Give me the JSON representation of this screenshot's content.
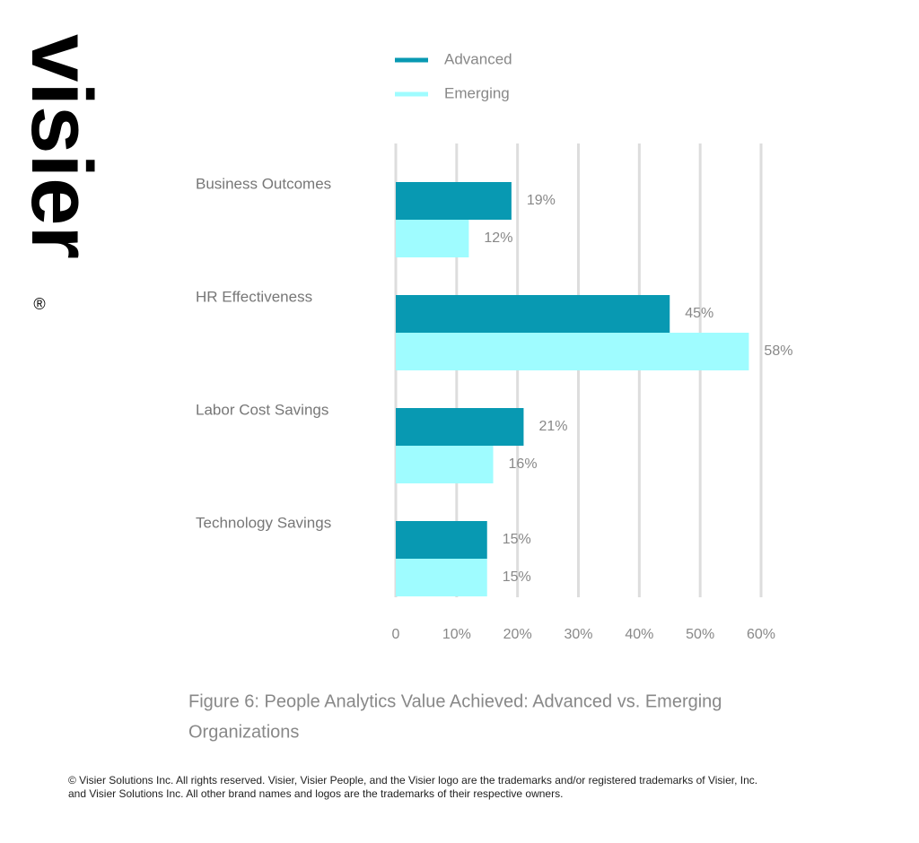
{
  "logo": "visier",
  "logo_mark": "®",
  "chart_data": {
    "type": "bar",
    "orientation": "horizontal",
    "categories": [
      "Business Outcomes",
      "HR Effectiveness",
      "Labor Cost Savings",
      "Technology Savings"
    ],
    "series": [
      {
        "name": "Advanced",
        "color": "#0899b2",
        "values": [
          19,
          45,
          21,
          15
        ],
        "value_labels": [
          "19%",
          "45%",
          "21%",
          "15%"
        ]
      },
      {
        "name": "Emerging",
        "color": "#9ffcff",
        "values": [
          12,
          58,
          16,
          15
        ],
        "value_labels": [
          "12%",
          "58%",
          "16%",
          "15%"
        ]
      }
    ],
    "xlim": [
      0,
      60
    ],
    "xticks": [
      0,
      {
        "value": 10,
        "label": "10%"
      },
      {
        "value": 20,
        "label": "20%"
      },
      {
        "value": 30,
        "label": "30%"
      },
      {
        "value": 40,
        "label": "40%"
      },
      {
        "value": 50,
        "label": "50%"
      },
      {
        "value": 60,
        "label": "60%"
      }
    ],
    "grid": true,
    "legend": "top",
    "caption_lines": [
      "Figure 6: People Analytics Value Achieved: Advanced vs. Emerging",
      "Organizations"
    ]
  },
  "footer_lines": [
    "© Visier Solutions Inc. All rights reserved. Visier, Visier People, and the Visier logo are the trademarks and/or registered trademarks of Visier, Inc.",
    "and Visier Solutions Inc. All other brand names and logos are the trademarks of their respective owners."
  ]
}
